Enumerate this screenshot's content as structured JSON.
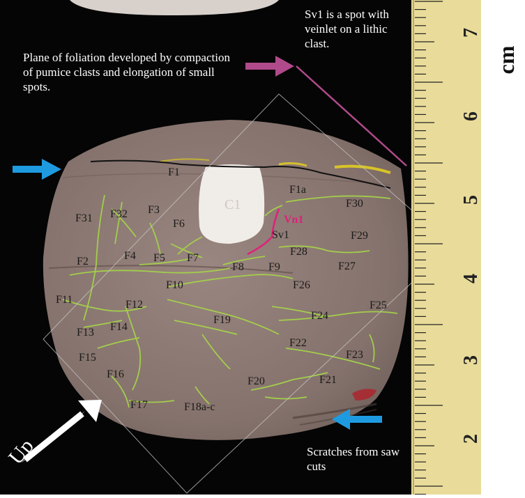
{
  "annotations": {
    "foliation_note": "Plane of foliation developed by compaction of pumice clasts and elongation of small spots.",
    "sv1_note": "Sv1 is a spot with veinlet on a lithic clast.",
    "scratches_note": "Scratches from saw cuts",
    "up_label": "Up",
    "unit_label": "cm"
  },
  "ruler": {
    "numbers": [
      "7",
      "6",
      "5",
      "4",
      "3",
      "2"
    ]
  },
  "labels": {
    "C1": "C1",
    "Vn1": "Vn1",
    "Sv1": "Sv1",
    "F1": "F1",
    "F1a": "F1a",
    "F2": "F2",
    "F3": "F3",
    "F4": "F4",
    "F5": "F5",
    "F6": "F6",
    "F7": "F7",
    "F8": "F8",
    "F9": "F9",
    "F10": "F10",
    "F11": "F11",
    "F12": "F12",
    "F13": "F13",
    "F14": "F14",
    "F15": "F15",
    "F16": "F16",
    "F17": "F17",
    "F18": "F18a-c",
    "F19": "F19",
    "F20": "F20",
    "F21": "F21",
    "F22": "F22",
    "F23": "F23",
    "F24": "F24",
    "F25": "F25",
    "F26": "F26",
    "F27": "F27",
    "F28": "F28",
    "F29": "F29",
    "F30": "F30",
    "F31": "F31",
    "F32": "F32"
  },
  "colors": {
    "background": "#050505",
    "rock": "#8a7670",
    "vein": "#a4d34a",
    "veinlet": "#e0207a",
    "clast": "#f0ece8",
    "arrow_blue": "#1e9be0",
    "arrow_magenta": "#b04a8a",
    "ruler": "#e9dc9a"
  }
}
